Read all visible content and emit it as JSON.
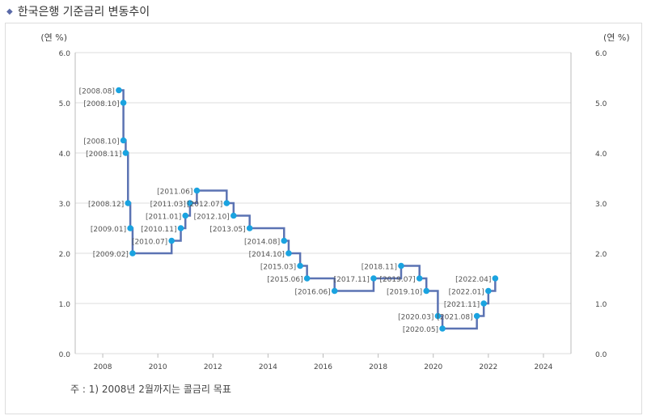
{
  "title": "한국은행 기준금리 변동추이",
  "note": "주 : 1) 2008년 2월까지는 콜금리 목표",
  "chart_data": {
    "type": "line",
    "step": true,
    "ylabel_left": "(연 %)",
    "ylabel_right": "(연 %)",
    "xlim": [
      2007,
      2025
    ],
    "ylim": [
      0,
      6
    ],
    "xticks": [
      2008,
      2010,
      2012,
      2014,
      2016,
      2018,
      2020,
      2022,
      2024
    ],
    "yticks": [
      "0.0",
      "1.0",
      "2.0",
      "3.0",
      "4.0",
      "5.0",
      "6.0"
    ],
    "grid": true,
    "line_color": "#5b73b3",
    "marker_color": "#1aa3e0",
    "points": [
      {
        "label": "[2008.08]",
        "date": "2008.08",
        "value": 5.25
      },
      {
        "label": "[2008.10]",
        "date": "2008.10",
        "value": 5.0
      },
      {
        "label": "[2008.10]",
        "date": "2008.10",
        "value": 4.25
      },
      {
        "label": "[2008.11]",
        "date": "2008.11",
        "value": 4.0
      },
      {
        "label": "[2008.12]",
        "date": "2008.12",
        "value": 3.0
      },
      {
        "label": "[2009.01]",
        "date": "2009.01",
        "value": 2.5
      },
      {
        "label": "[2009.02]",
        "date": "2009.02",
        "value": 2.0
      },
      {
        "label": "[2010.07]",
        "date": "2010.07",
        "value": 2.25
      },
      {
        "label": "[2010.11]",
        "date": "2010.11",
        "value": 2.5
      },
      {
        "label": "[2011.01]",
        "date": "2011.01",
        "value": 2.75
      },
      {
        "label": "[2011.03]",
        "date": "2011.03",
        "value": 3.0
      },
      {
        "label": "[2011.06]",
        "date": "2011.06",
        "value": 3.25
      },
      {
        "label": "[2012.07]",
        "date": "2012.07",
        "value": 3.0
      },
      {
        "label": "[2012.10]",
        "date": "2012.10",
        "value": 2.75
      },
      {
        "label": "[2013.05]",
        "date": "2013.05",
        "value": 2.5
      },
      {
        "label": "[2014.08]",
        "date": "2014.08",
        "value": 2.25
      },
      {
        "label": "[2014.10]",
        "date": "2014.10",
        "value": 2.0
      },
      {
        "label": "[2015.03]",
        "date": "2015.03",
        "value": 1.75
      },
      {
        "label": "[2015.06]",
        "date": "2015.06",
        "value": 1.5
      },
      {
        "label": "[2016.06]",
        "date": "2016.06",
        "value": 1.25
      },
      {
        "label": "[2017.11]",
        "date": "2017.11",
        "value": 1.5
      },
      {
        "label": "[2018.11]",
        "date": "2018.11",
        "value": 1.75
      },
      {
        "label": "[2019.07]",
        "date": "2019.07",
        "value": 1.5
      },
      {
        "label": "[2019.10]",
        "date": "2019.10",
        "value": 1.25
      },
      {
        "label": "[2020.03]",
        "date": "2020.03",
        "value": 0.75
      },
      {
        "label": "[2020.05]",
        "date": "2020.05",
        "value": 0.5
      },
      {
        "label": "[2021.08]",
        "date": "2021.08",
        "value": 0.75
      },
      {
        "label": "[2021.11]",
        "date": "2021.11",
        "value": 1.0
      },
      {
        "label": "[2022.01]",
        "date": "2022.01",
        "value": 1.25
      },
      {
        "label": "[2022.04]",
        "date": "2022.04",
        "value": 1.5
      }
    ]
  }
}
